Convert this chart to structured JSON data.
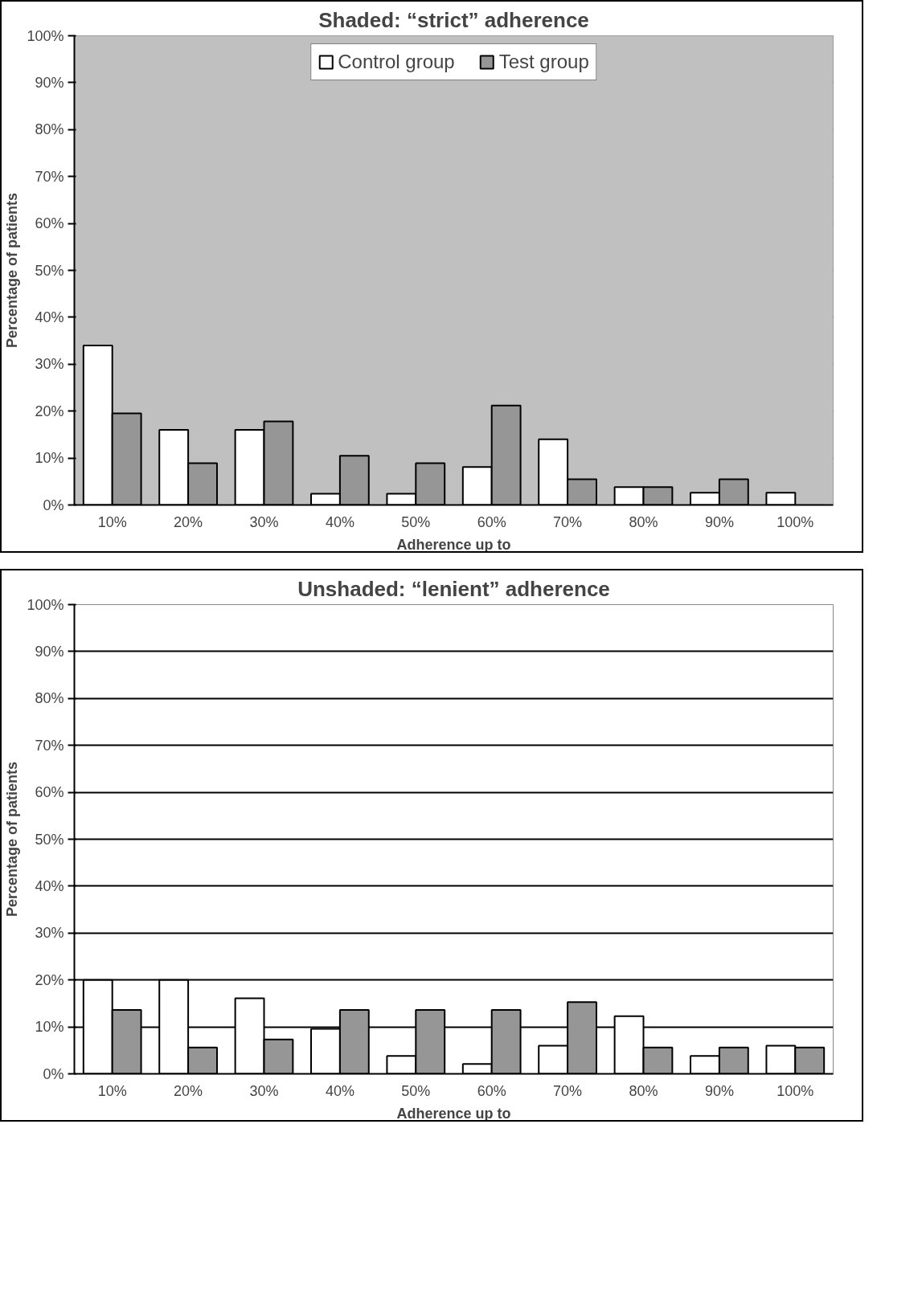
{
  "chart_data": [
    {
      "type": "bar",
      "title": "Shaded: “strict” adherence",
      "xlabel": "Adherence up to",
      "ylabel": "Percentage of patients",
      "categories": [
        "10%",
        "20%",
        "30%",
        "40%",
        "50%",
        "60%",
        "70%",
        "80%",
        "90%",
        "100%"
      ],
      "series": [
        {
          "name": "Control group",
          "color": "#ffffff",
          "values": [
            34,
            16,
            16,
            2.4,
            2.4,
            8.1,
            14,
            3.8,
            2.6,
            2.6
          ]
        },
        {
          "name": "Test group",
          "color": "#969696",
          "values": [
            19.5,
            8.9,
            17.8,
            10.5,
            8.9,
            21.2,
            5.5,
            3.8,
            5.5,
            0
          ]
        }
      ],
      "ylim": [
        0,
        100
      ],
      "yticks": [
        {
          "value": 0,
          "label": "0%"
        },
        {
          "value": 10,
          "label": "10%"
        },
        {
          "value": 20,
          "label": "20%"
        },
        {
          "value": 30,
          "label": "30%"
        },
        {
          "value": 40,
          "label": "40%"
        },
        {
          "value": 50,
          "label": "50%"
        },
        {
          "value": 60,
          "label": "60%"
        },
        {
          "value": 70,
          "label": "70%"
        },
        {
          "value": 80,
          "label": "80%"
        },
        {
          "value": 90,
          "label": "90%"
        },
        {
          "value": 100,
          "label": "100%"
        }
      ],
      "bands": [
        {
          "axis": "y",
          "from": 0,
          "to": 100,
          "color": "#c0c0c0"
        }
      ],
      "grid": "y",
      "legend": "top"
    },
    {
      "type": "bar",
      "title": "Unshaded: “lenient” adherence",
      "xlabel": "Adherence up to",
      "ylabel": "Percentage of patients",
      "categories": [
        "10%",
        "20%",
        "30%",
        "40%",
        "50%",
        "60%",
        "70%",
        "80%",
        "90%",
        "100%"
      ],
      "series": [
        {
          "color": "#ffffff",
          "values": [
            20,
            20,
            16.1,
            9.6,
            3.8,
            2.1,
            6,
            12.3,
            3.8,
            6
          ]
        },
        {
          "color": "#969696",
          "values": [
            13.6,
            5.6,
            7.3,
            13.6,
            13.6,
            13.6,
            15.3,
            5.6,
            5.6,
            5.6
          ]
        }
      ],
      "ylim": [
        0,
        100
      ],
      "yticks": [
        {
          "value": 0,
          "label": "0%"
        },
        {
          "value": 10,
          "label": "10%"
        },
        {
          "value": 20,
          "label": "20%"
        },
        {
          "value": 30,
          "label": "30%"
        },
        {
          "value": 40,
          "label": "40%"
        },
        {
          "value": 50,
          "label": "50%"
        },
        {
          "value": 60,
          "label": "60%"
        },
        {
          "value": 70,
          "label": "70%"
        },
        {
          "value": 80,
          "label": "80%"
        },
        {
          "value": 90,
          "label": "90%"
        },
        {
          "value": 100,
          "label": "100%"
        }
      ],
      "grid": "y"
    }
  ]
}
